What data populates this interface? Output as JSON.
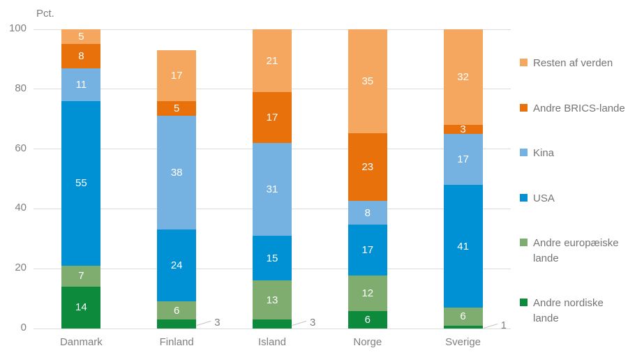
{
  "chart_data": {
    "type": "bar",
    "stacked": true,
    "unit_label": "Pct.",
    "categories": [
      "Danmark",
      "Finland",
      "Island",
      "Norge",
      "Sverige"
    ],
    "series": [
      {
        "name": "Andre nordiske lande",
        "color": "#0d8a3c",
        "values": [
          14,
          3,
          3,
          6,
          1
        ]
      },
      {
        "name": "Andre europæiske lande",
        "color": "#7ead6f",
        "values": [
          7,
          6,
          13,
          12,
          6
        ]
      },
      {
        "name": "USA",
        "color": "#0091d5",
        "values": [
          55,
          24,
          15,
          17,
          41
        ]
      },
      {
        "name": "Kina",
        "color": "#76b2e1",
        "values": [
          11,
          38,
          31,
          8,
          17
        ]
      },
      {
        "name": "Andre BRICS-lande",
        "color": "#e8710c",
        "values": [
          8,
          5,
          17,
          23,
          3
        ]
      },
      {
        "name": "Resten af verden",
        "color": "#f5a75f",
        "values": [
          5,
          17,
          21,
          35,
          32
        ]
      }
    ],
    "legend_order_top_to_bottom": [
      "Resten af verden",
      "Andre BRICS-lande",
      "Kina",
      "USA",
      "Andre europæiske lande",
      "Andre nordiske lande"
    ],
    "legend_position": "right",
    "ylim": [
      0,
      100
    ],
    "yticks": [
      0,
      20,
      40,
      60,
      80,
      100
    ],
    "grid": true,
    "callouts": [
      {
        "category": "Finland",
        "series": "Andre nordiske lande",
        "value": 3
      },
      {
        "category": "Island",
        "series": "Andre nordiske lande",
        "value": 3
      },
      {
        "category": "Sverige",
        "series": "Andre nordiske lande",
        "value": 1
      }
    ],
    "colors": {
      "gridline": "#dcdcdc",
      "axis_text": "#7f7f7f",
      "value_label": "#ffffff",
      "callout_line": "#c3c3c3"
    }
  }
}
